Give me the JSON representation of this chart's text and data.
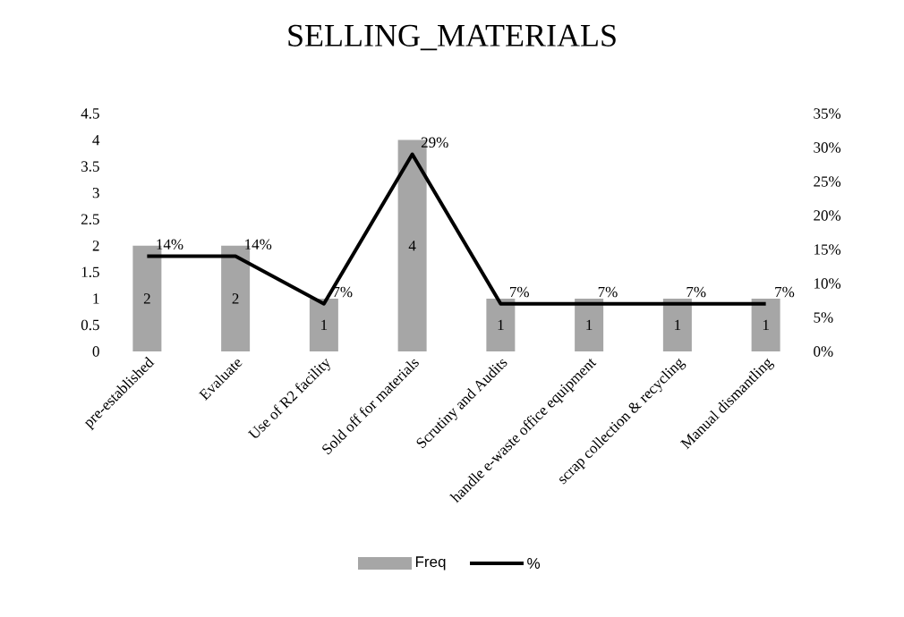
{
  "chart_data": {
    "type": "bar",
    "title": "SELLING_MATERIALS",
    "categories": [
      "pre-established",
      "Evaluate",
      "Use of R2 facility",
      "Sold off for materials",
      "Scrutiny and Audits",
      "handle e-waste office equipment",
      "scrap collection & recycling",
      "Manual dismantling"
    ],
    "series": [
      {
        "name": "Freq",
        "color": "#a6a6a6",
        "values": [
          2,
          2,
          1,
          4,
          1,
          1,
          1,
          1
        ],
        "value_labels": [
          "2",
          "2",
          "1",
          "4",
          "1",
          "1",
          "1",
          "1"
        ]
      },
      {
        "name": "%",
        "type": "line",
        "axis": "y2",
        "color": "#000000",
        "values": [
          14,
          14,
          7,
          29,
          7,
          7,
          7,
          7
        ],
        "value_labels": [
          "14%",
          "14%",
          "7%",
          "29%",
          "7%",
          "7%",
          "7%",
          "7%"
        ]
      }
    ],
    "ylim": [
      0,
      4.5
    ],
    "yticks": [
      0,
      0.5,
      1,
      1.5,
      2,
      2.5,
      3,
      3.5,
      4,
      4.5
    ],
    "y2lim": [
      0,
      35
    ],
    "y2ticks": [
      {
        "value": 0,
        "label": "0%"
      },
      {
        "value": 5,
        "label": "5%"
      },
      {
        "value": 10,
        "label": "10%"
      },
      {
        "value": 15,
        "label": "15%"
      },
      {
        "value": 20,
        "label": "20%"
      },
      {
        "value": 25,
        "label": "25%"
      },
      {
        "value": 30,
        "label": "30%"
      },
      {
        "value": 35,
        "label": "35%"
      }
    ],
    "legend": "bottom"
  }
}
